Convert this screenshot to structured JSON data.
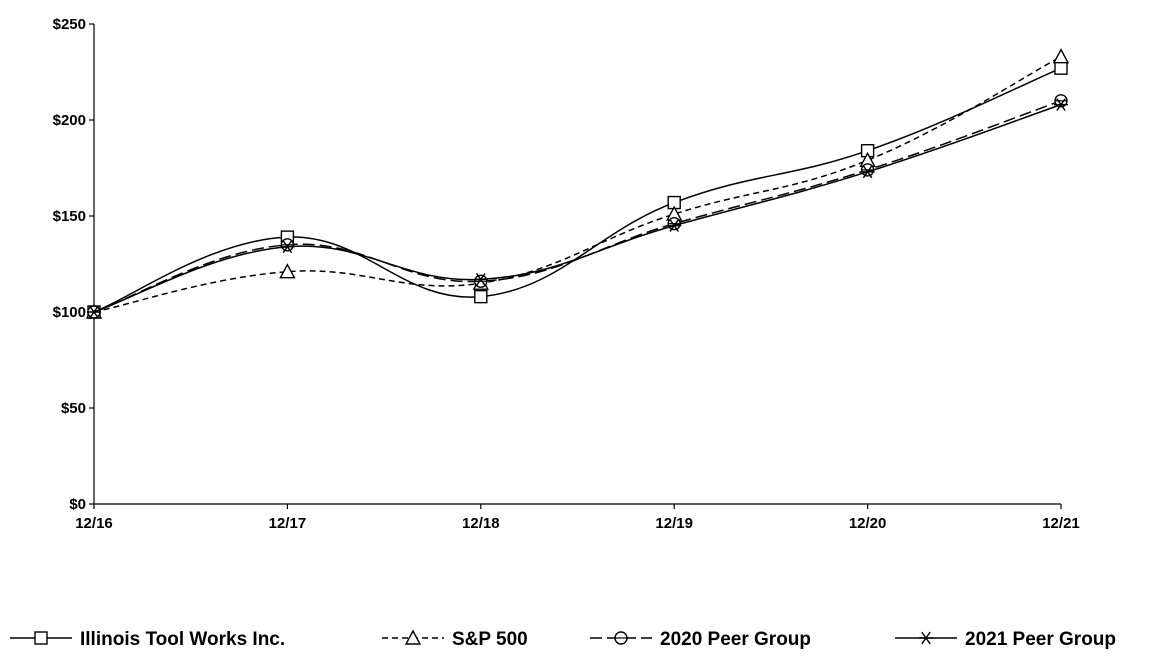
{
  "chart_data": {
    "type": "line",
    "title": "",
    "xlabel": "",
    "ylabel": "",
    "categories": [
      "12/16",
      "12/17",
      "12/18",
      "12/19",
      "12/20",
      "12/21"
    ],
    "ylim": [
      0,
      250
    ],
    "yticks": [
      0,
      50,
      100,
      150,
      200,
      250
    ],
    "ytick_labels": [
      "$0",
      "$50",
      "$100",
      "$150",
      "$200",
      "$250"
    ],
    "grid": false,
    "legend_position": "bottom",
    "series": [
      {
        "name": "Illinois Tool Works Inc.",
        "values": [
          100,
          139,
          108,
          157,
          184,
          227
        ],
        "marker": "square",
        "dash": "solid",
        "color": "#000000"
      },
      {
        "name": "S&P 500",
        "values": [
          100,
          121,
          115,
          151,
          179,
          233
        ],
        "marker": "triangle",
        "dash": "dashed",
        "color": "#000000"
      },
      {
        "name": "2020 Peer Group",
        "values": [
          100,
          135,
          116,
          146,
          174,
          210
        ],
        "marker": "circle",
        "dash": "longdash",
        "color": "#000000"
      },
      {
        "name": "2021 Peer Group",
        "values": [
          100,
          134,
          117,
          145,
          173,
          208
        ],
        "marker": "asterisk",
        "dash": "solid",
        "color": "#000000"
      }
    ]
  }
}
